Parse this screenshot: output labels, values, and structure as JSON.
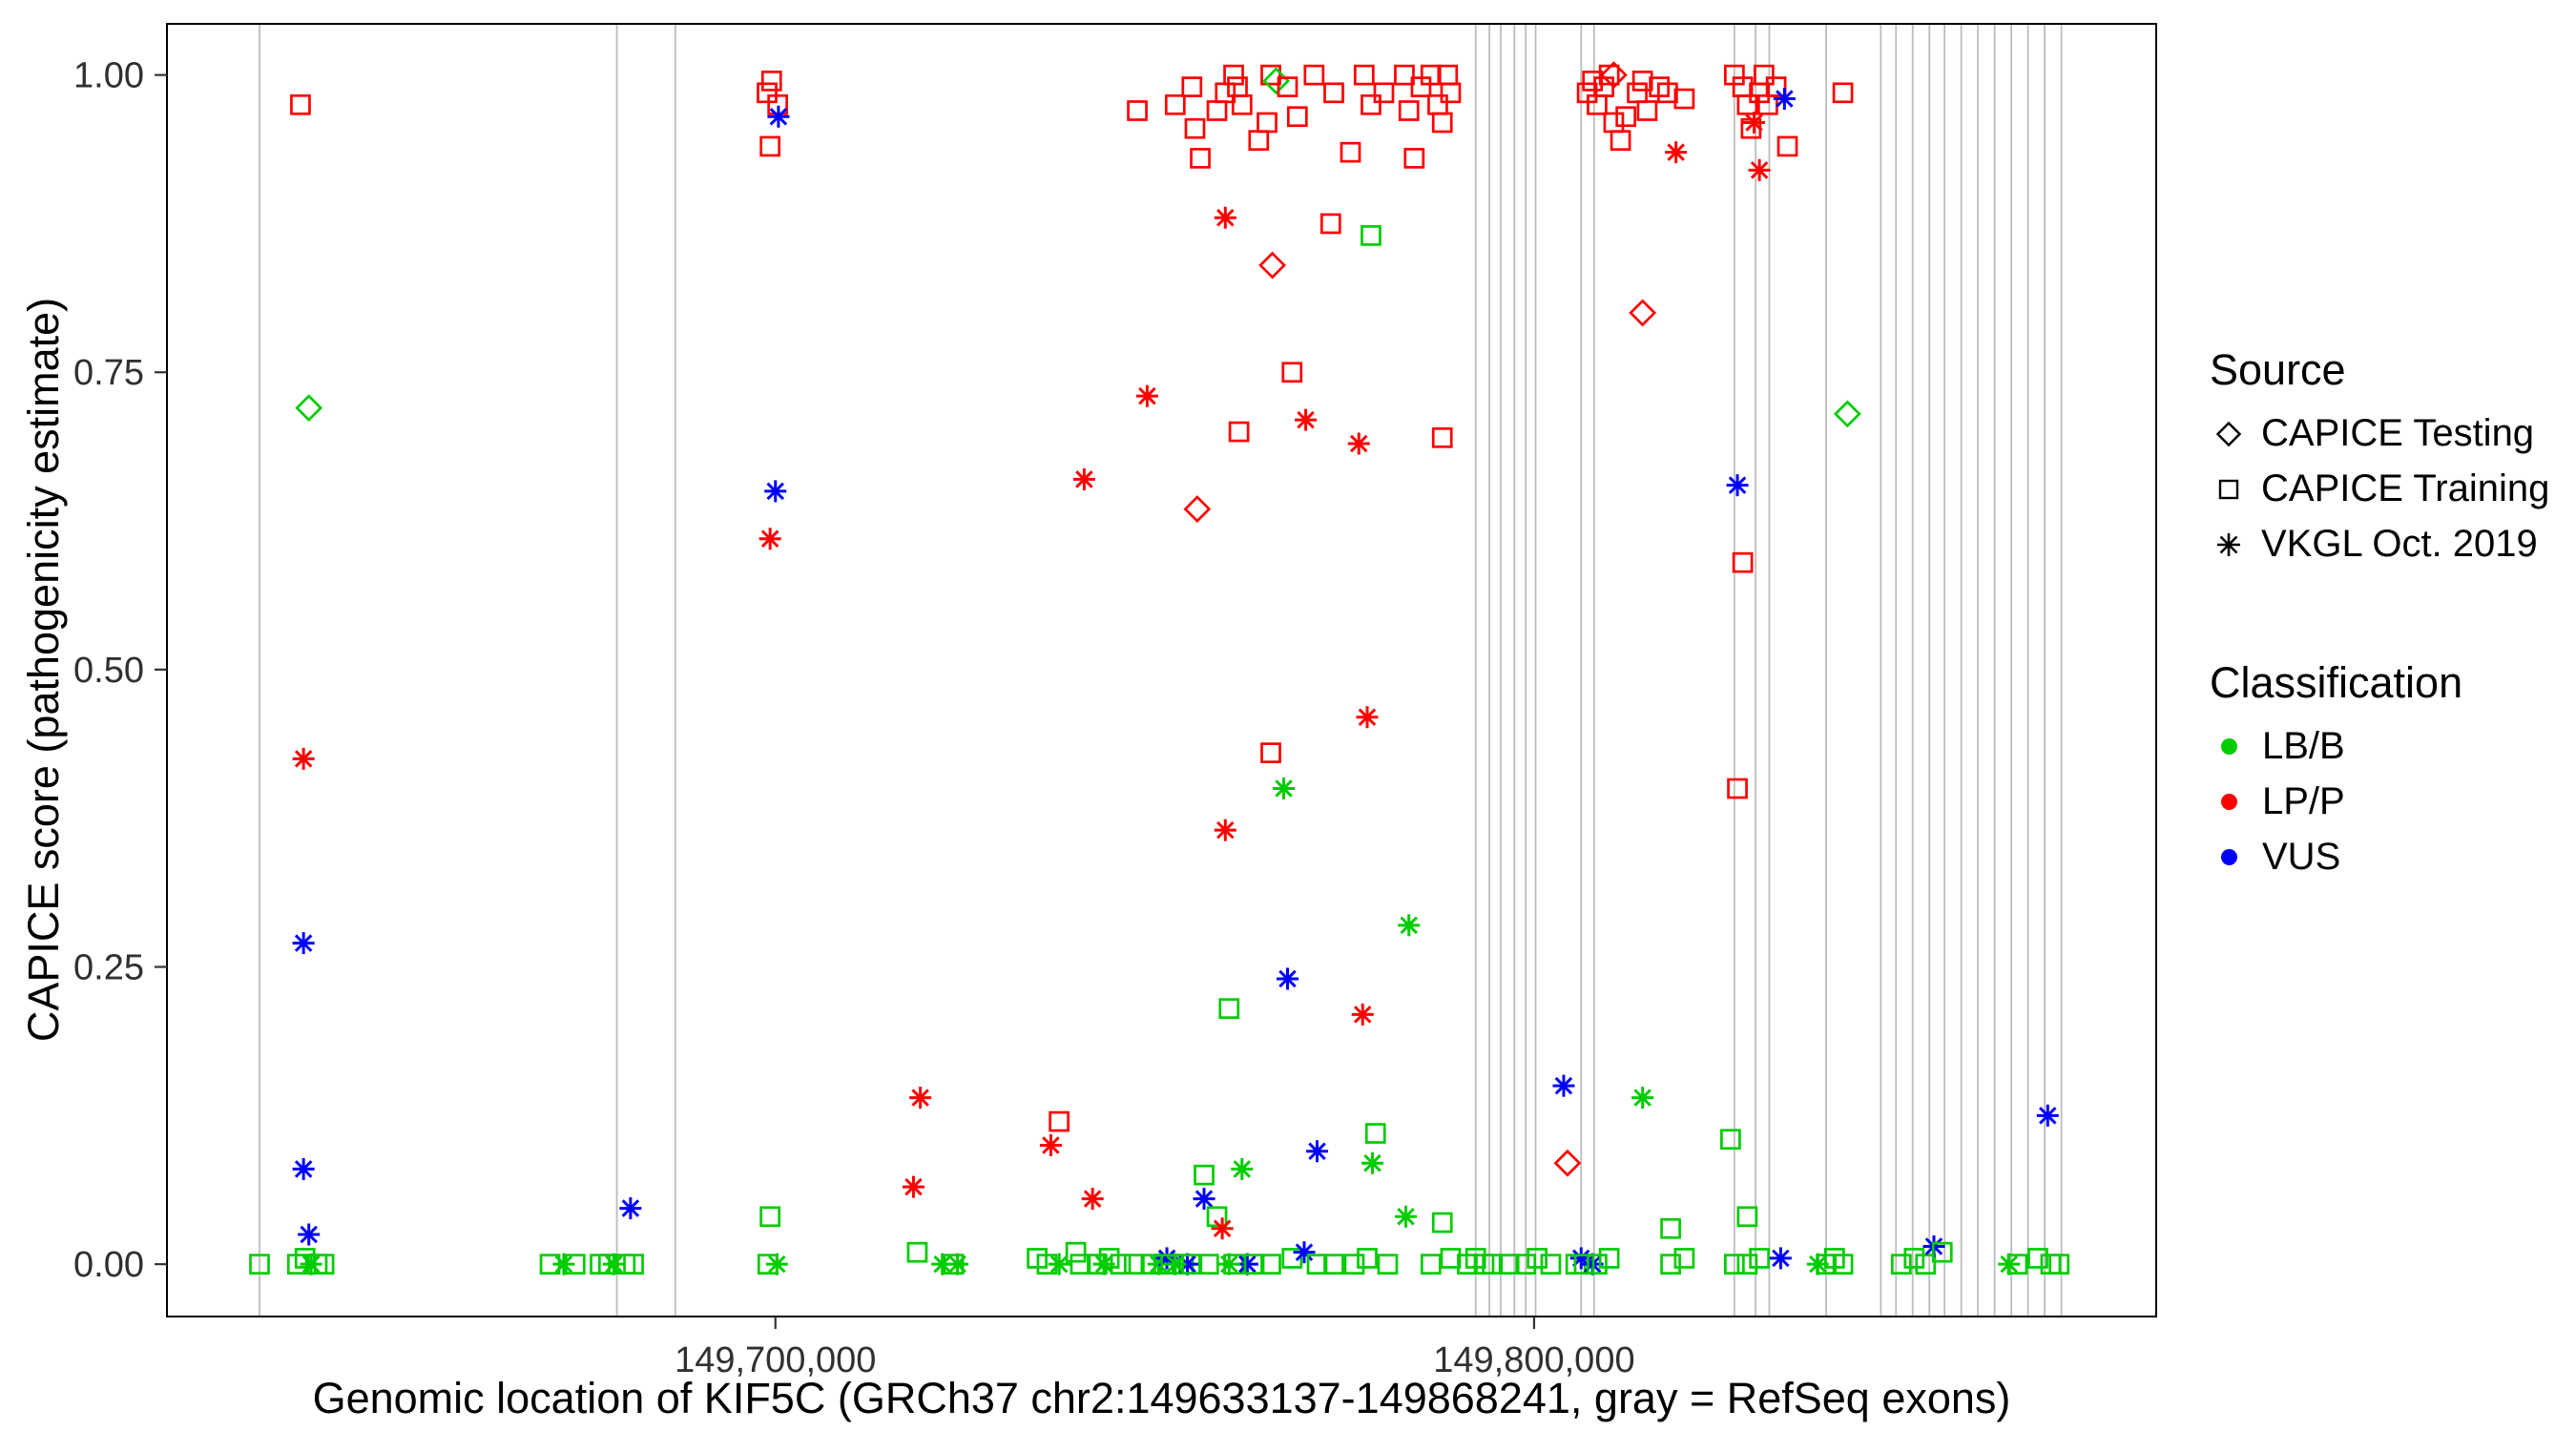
{
  "legend": {
    "source": {
      "title": "Source",
      "items": [
        {
          "label": "CAPICE Testing",
          "shape": "diamond"
        },
        {
          "label": "CAPICE Training",
          "shape": "square"
        },
        {
          "label": "VKGL Oct. 2019",
          "shape": "asterisk"
        }
      ]
    },
    "classification": {
      "title": "Classification",
      "items": [
        {
          "label": "LB/B",
          "color": "#00CC00"
        },
        {
          "label": "LP/P",
          "color": "#FF0000"
        },
        {
          "label": "VUS",
          "color": "#0000FF"
        }
      ]
    }
  },
  "chart_data": {
    "type": "scatter",
    "title": "",
    "xlabel": "Genomic location of KIF5C (GRCh37 chr2:149633137-149868241, gray = RefSeq exons)",
    "ylabel": "CAPICE score (pathogenicity estimate)",
    "xlim": [
      149619800,
      149882000
    ],
    "ylim": [
      -0.044,
      1.043
    ],
    "grid": false,
    "legend_position": "right",
    "x_ticks": [
      {
        "value": 149700000,
        "label": "149,700,000"
      },
      {
        "value": 149800000,
        "label": "149,800,000"
      }
    ],
    "y_ticks": [
      {
        "value": 0.0,
        "label": "0.00"
      },
      {
        "value": 0.25,
        "label": "0.25"
      },
      {
        "value": 0.5,
        "label": "0.50"
      },
      {
        "value": 0.75,
        "label": "0.75"
      },
      {
        "value": 1.0,
        "label": "1.00"
      }
    ],
    "exon_line_color": "#BDBDBD",
    "shape_codes": {
      "d": "CAPICE Testing",
      "s": "CAPICE Training",
      "a": "VKGL Oct. 2019"
    },
    "class_codes": {
      "B": "LB/B",
      "P": "LP/P",
      "V": "VUS"
    },
    "class_colors": {
      "B": "#00CC00",
      "P": "#FF0000",
      "V": "#0000FF"
    },
    "exon_lines": [
      149632000,
      149679100,
      149686800,
      149792300,
      149794100,
      149795600,
      149797400,
      149798900,
      149800200,
      149806200,
      149807900,
      149826400,
      149829200,
      149831000,
      149838500,
      149845700,
      149847700,
      149849900,
      149852100,
      149854100,
      149856300,
      149858500,
      149860700,
      149862900,
      149865100,
      149867300,
      149869500
    ],
    "points": [
      [
        149632000,
        0.0,
        "s",
        "B"
      ],
      [
        149637400,
        0.975,
        "s",
        "P"
      ],
      [
        149638500,
        0.72,
        "d",
        "B"
      ],
      [
        149637800,
        0.425,
        "a",
        "P"
      ],
      [
        149637800,
        0.27,
        "a",
        "V"
      ],
      [
        149637800,
        0.08,
        "a",
        "V"
      ],
      [
        149638500,
        0.025,
        "a",
        "V"
      ],
      [
        149637000,
        0.0,
        "s",
        "B"
      ],
      [
        149638000,
        0.005,
        "s",
        "B"
      ],
      [
        149638800,
        0.0,
        "a",
        "B"
      ],
      [
        149639600,
        0.0,
        "s",
        "B"
      ],
      [
        149640500,
        0.0,
        "s",
        "B"
      ],
      [
        149670300,
        0.0,
        "s",
        "B"
      ],
      [
        149672100,
        0.0,
        "a",
        "B"
      ],
      [
        149673600,
        0.0,
        "s",
        "B"
      ],
      [
        149676900,
        0.0,
        "s",
        "B"
      ],
      [
        149678000,
        0.0,
        "s",
        "B"
      ],
      [
        149678700,
        0.0,
        "a",
        "B"
      ],
      [
        149680200,
        0.0,
        "s",
        "B"
      ],
      [
        149680900,
        0.047,
        "a",
        "V"
      ],
      [
        149681300,
        0.0,
        "s",
        "B"
      ],
      [
        149698900,
        0.985,
        "s",
        "P"
      ],
      [
        149699500,
        0.995,
        "s",
        "P"
      ],
      [
        149700300,
        0.975,
        "s",
        "P"
      ],
      [
        149700400,
        0.965,
        "a",
        "V"
      ],
      [
        149699300,
        0.94,
        "s",
        "P"
      ],
      [
        149700000,
        0.65,
        "a",
        "V"
      ],
      [
        149699300,
        0.61,
        "a",
        "P"
      ],
      [
        149699300,
        0.04,
        "s",
        "B"
      ],
      [
        149699000,
        0.0,
        "s",
        "B"
      ],
      [
        149700200,
        0.0,
        "a",
        "B"
      ],
      [
        149719100,
        0.14,
        "a",
        "P"
      ],
      [
        149718200,
        0.065,
        "a",
        "P"
      ],
      [
        149718700,
        0.01,
        "s",
        "B"
      ],
      [
        149722000,
        0.0,
        "a",
        "B"
      ],
      [
        149723500,
        0.0,
        "s",
        "B"
      ],
      [
        149724000,
        0.0,
        "a",
        "B"
      ],
      [
        149740700,
        0.66,
        "a",
        "P"
      ],
      [
        149737400,
        0.12,
        "s",
        "P"
      ],
      [
        149736300,
        0.1,
        "a",
        "P"
      ],
      [
        149741800,
        0.055,
        "a",
        "P"
      ],
      [
        149734500,
        0.005,
        "s",
        "B"
      ],
      [
        149735800,
        0.0,
        "s",
        "B"
      ],
      [
        149737400,
        0.0,
        "a",
        "B"
      ],
      [
        149739600,
        0.01,
        "s",
        "B"
      ],
      [
        149740200,
        0.0,
        "s",
        "B"
      ],
      [
        149742400,
        0.0,
        "s",
        "B"
      ],
      [
        149743300,
        0.0,
        "a",
        "B"
      ],
      [
        149744000,
        0.005,
        "s",
        "B"
      ],
      [
        149745500,
        0.0,
        "s",
        "B"
      ],
      [
        149749000,
        0.73,
        "a",
        "P"
      ],
      [
        149747700,
        0.97,
        "s",
        "P"
      ],
      [
        149747300,
        0.0,
        "s",
        "B"
      ],
      [
        149749500,
        0.0,
        "s",
        "B"
      ],
      [
        149750500,
        0.0,
        "a",
        "B"
      ],
      [
        149751200,
        0.0,
        "s",
        "B"
      ],
      [
        149751600,
        0.005,
        "a",
        "V"
      ],
      [
        149752100,
        0.0,
        "s",
        "B"
      ],
      [
        149752700,
        0.975,
        "s",
        "P"
      ],
      [
        149754900,
        0.99,
        "s",
        "P"
      ],
      [
        149755300,
        0.955,
        "s",
        "P"
      ],
      [
        149756000,
        0.93,
        "s",
        "P"
      ],
      [
        149758200,
        0.97,
        "s",
        "P"
      ],
      [
        149759300,
        0.985,
        "s",
        "P"
      ],
      [
        149760400,
        1.0,
        "s",
        "P"
      ],
      [
        149760900,
        0.99,
        "s",
        "P"
      ],
      [
        149761500,
        0.975,
        "s",
        "P"
      ],
      [
        149763700,
        0.945,
        "s",
        "P"
      ],
      [
        149764800,
        0.96,
        "s",
        "P"
      ],
      [
        149765300,
        1.0,
        "s",
        "P"
      ],
      [
        149766000,
        0.995,
        "d",
        "B"
      ],
      [
        149765500,
        0.84,
        "d",
        "P"
      ],
      [
        149767500,
        0.99,
        "s",
        "P"
      ],
      [
        149768800,
        0.965,
        "s",
        "P"
      ],
      [
        149771000,
        1.0,
        "s",
        "P"
      ],
      [
        149773600,
        0.985,
        "s",
        "P"
      ],
      [
        149775800,
        0.935,
        "s",
        "P"
      ],
      [
        149777600,
        1.0,
        "s",
        "P"
      ],
      [
        149778500,
        0.975,
        "s",
        "P"
      ],
      [
        149780200,
        0.985,
        "s",
        "P"
      ],
      [
        149782900,
        1.0,
        "s",
        "P"
      ],
      [
        149783500,
        0.97,
        "s",
        "P"
      ],
      [
        149784200,
        0.93,
        "s",
        "P"
      ],
      [
        149785100,
        0.99,
        "s",
        "P"
      ],
      [
        149786400,
        1.0,
        "s",
        "P"
      ],
      [
        149787300,
        0.975,
        "s",
        "P"
      ],
      [
        149787900,
        0.96,
        "s",
        "P"
      ],
      [
        149788600,
        1.0,
        "s",
        "P"
      ],
      [
        149789000,
        0.985,
        "s",
        "P"
      ],
      [
        149759300,
        0.88,
        "a",
        "P"
      ],
      [
        149773200,
        0.875,
        "s",
        "P"
      ],
      [
        149778500,
        0.865,
        "s",
        "B"
      ],
      [
        149768100,
        0.75,
        "s",
        "P"
      ],
      [
        149761100,
        0.7,
        "s",
        "P"
      ],
      [
        149769900,
        0.71,
        "a",
        "P"
      ],
      [
        149776900,
        0.69,
        "a",
        "P"
      ],
      [
        149787900,
        0.695,
        "s",
        "P"
      ],
      [
        149755600,
        0.635,
        "d",
        "P"
      ],
      [
        149778000,
        0.46,
        "a",
        "P"
      ],
      [
        149765300,
        0.43,
        "s",
        "P"
      ],
      [
        149767000,
        0.4,
        "a",
        "B"
      ],
      [
        149759300,
        0.365,
        "a",
        "P"
      ],
      [
        149783500,
        0.285,
        "a",
        "B"
      ],
      [
        149767500,
        0.24,
        "a",
        "V"
      ],
      [
        149777400,
        0.21,
        "a",
        "P"
      ],
      [
        149759800,
        0.215,
        "s",
        "B"
      ],
      [
        149771400,
        0.095,
        "a",
        "V"
      ],
      [
        149779100,
        0.11,
        "s",
        "B"
      ],
      [
        149778700,
        0.085,
        "a",
        "B"
      ],
      [
        149761500,
        0.08,
        "a",
        "B"
      ],
      [
        149756500,
        0.075,
        "s",
        "B"
      ],
      [
        149756500,
        0.055,
        "a",
        "V"
      ],
      [
        149758200,
        0.04,
        "s",
        "B"
      ],
      [
        149758900,
        0.03,
        "a",
        "P"
      ],
      [
        149783100,
        0.04,
        "a",
        "B"
      ],
      [
        149787900,
        0.035,
        "s",
        "B"
      ],
      [
        149753800,
        0.0,
        "s",
        "B"
      ],
      [
        149754300,
        0.0,
        "a",
        "V"
      ],
      [
        149754900,
        0.0,
        "s",
        "B"
      ],
      [
        149757100,
        0.0,
        "s",
        "B"
      ],
      [
        149760400,
        0.0,
        "s",
        "B"
      ],
      [
        149762200,
        0.0,
        "a",
        "V"
      ],
      [
        149763100,
        0.0,
        "s",
        "B"
      ],
      [
        149765300,
        0.0,
        "s",
        "B"
      ],
      [
        149768100,
        0.005,
        "s",
        "B"
      ],
      [
        149769700,
        0.01,
        "a",
        "V"
      ],
      [
        149771400,
        0.0,
        "s",
        "B"
      ],
      [
        149773600,
        0.0,
        "s",
        "B"
      ],
      [
        149776300,
        0.0,
        "s",
        "B"
      ],
      [
        149778000,
        0.005,
        "s",
        "B"
      ],
      [
        149780700,
        0.0,
        "s",
        "B"
      ],
      [
        149786400,
        0.0,
        "s",
        "B"
      ],
      [
        149789000,
        0.005,
        "s",
        "B"
      ],
      [
        149791200,
        0.0,
        "s",
        "B"
      ],
      [
        149752700,
        0.0,
        "a",
        "B"
      ],
      [
        149759800,
        0.0,
        "a",
        "B"
      ],
      [
        149792300,
        0.005,
        "s",
        "B"
      ],
      [
        149793400,
        0.0,
        "s",
        "B"
      ],
      [
        149794500,
        0.0,
        "s",
        "B"
      ],
      [
        149796700,
        0.0,
        "s",
        "B"
      ],
      [
        149798900,
        0.0,
        "s",
        "B"
      ],
      [
        149800400,
        0.005,
        "s",
        "B"
      ],
      [
        149802200,
        0.0,
        "s",
        "B"
      ],
      [
        149803900,
        0.15,
        "a",
        "V"
      ],
      [
        149804400,
        0.085,
        "d",
        "P"
      ],
      [
        149805500,
        0.0,
        "s",
        "B"
      ],
      [
        149806200,
        0.005,
        "a",
        "V"
      ],
      [
        149807700,
        0.0,
        "a",
        "V"
      ],
      [
        149806600,
        0.0,
        "s",
        "B"
      ],
      [
        149808300,
        0.0,
        "s",
        "B"
      ],
      [
        149809900,
        0.005,
        "s",
        "B"
      ],
      [
        149807000,
        0.985,
        "s",
        "P"
      ],
      [
        149807700,
        0.995,
        "s",
        "P"
      ],
      [
        149808300,
        0.975,
        "s",
        "P"
      ],
      [
        149809200,
        0.99,
        "s",
        "P"
      ],
      [
        149809900,
        1.0,
        "s",
        "P"
      ],
      [
        149810500,
        1.0,
        "d",
        "P"
      ],
      [
        149810500,
        0.96,
        "s",
        "P"
      ],
      [
        149811400,
        0.945,
        "s",
        "P"
      ],
      [
        149812100,
        0.965,
        "s",
        "P"
      ],
      [
        149813600,
        0.985,
        "s",
        "P"
      ],
      [
        149814300,
        0.995,
        "s",
        "P"
      ],
      [
        149814900,
        0.97,
        "s",
        "P"
      ],
      [
        149816500,
        0.99,
        "s",
        "P"
      ],
      [
        149817600,
        0.985,
        "s",
        "P"
      ],
      [
        149818700,
        0.935,
        "a",
        "P"
      ],
      [
        149819800,
        0.98,
        "s",
        "P"
      ],
      [
        149814300,
        0.8,
        "d",
        "P"
      ],
      [
        149826400,
        1.0,
        "s",
        "P"
      ],
      [
        149827500,
        0.99,
        "s",
        "P"
      ],
      [
        149828100,
        0.975,
        "s",
        "P"
      ],
      [
        149828600,
        0.955,
        "s",
        "P"
      ],
      [
        149829000,
        0.96,
        "a",
        "P"
      ],
      [
        149829700,
        0.92,
        "a",
        "P"
      ],
      [
        149829700,
        0.985,
        "s",
        "P"
      ],
      [
        149830300,
        1.0,
        "s",
        "P"
      ],
      [
        149830800,
        0.975,
        "s",
        "P"
      ],
      [
        149831900,
        0.99,
        "s",
        "P"
      ],
      [
        149833000,
        0.98,
        "a",
        "V"
      ],
      [
        149833400,
        0.94,
        "s",
        "P"
      ],
      [
        149826800,
        0.655,
        "a",
        "V"
      ],
      [
        149827500,
        0.59,
        "s",
        "P"
      ],
      [
        149826800,
        0.4,
        "s",
        "P"
      ],
      [
        149814300,
        0.14,
        "a",
        "B"
      ],
      [
        149825900,
        0.105,
        "s",
        "B"
      ],
      [
        149818000,
        0.03,
        "s",
        "B"
      ],
      [
        149828100,
        0.04,
        "s",
        "B"
      ],
      [
        149818000,
        0.0,
        "s",
        "B"
      ],
      [
        149819800,
        0.005,
        "s",
        "B"
      ],
      [
        149826400,
        0.0,
        "s",
        "B"
      ],
      [
        149828100,
        0.0,
        "s",
        "B"
      ],
      [
        149829700,
        0.005,
        "s",
        "B"
      ],
      [
        149832500,
        0.005,
        "a",
        "V"
      ],
      [
        149837400,
        0.0,
        "a",
        "B"
      ],
      [
        149841300,
        0.715,
        "d",
        "B"
      ],
      [
        149840700,
        0.985,
        "s",
        "P"
      ],
      [
        149838500,
        0.0,
        "s",
        "B"
      ],
      [
        149839600,
        0.005,
        "s",
        "B"
      ],
      [
        149840700,
        0.0,
        "s",
        "B"
      ],
      [
        149848400,
        0.0,
        "s",
        "B"
      ],
      [
        149850100,
        0.005,
        "s",
        "B"
      ],
      [
        149851600,
        0.0,
        "s",
        "B"
      ],
      [
        149852700,
        0.015,
        "a",
        "V"
      ],
      [
        149853800,
        0.01,
        "s",
        "B"
      ],
      [
        149862600,
        0.0,
        "a",
        "B"
      ],
      [
        149863700,
        0.0,
        "s",
        "B"
      ],
      [
        149866400,
        0.005,
        "s",
        "B"
      ],
      [
        149868100,
        0.0,
        "s",
        "B"
      ],
      [
        149869200,
        0.0,
        "s",
        "B"
      ],
      [
        149867700,
        0.125,
        "a",
        "V"
      ]
    ]
  }
}
